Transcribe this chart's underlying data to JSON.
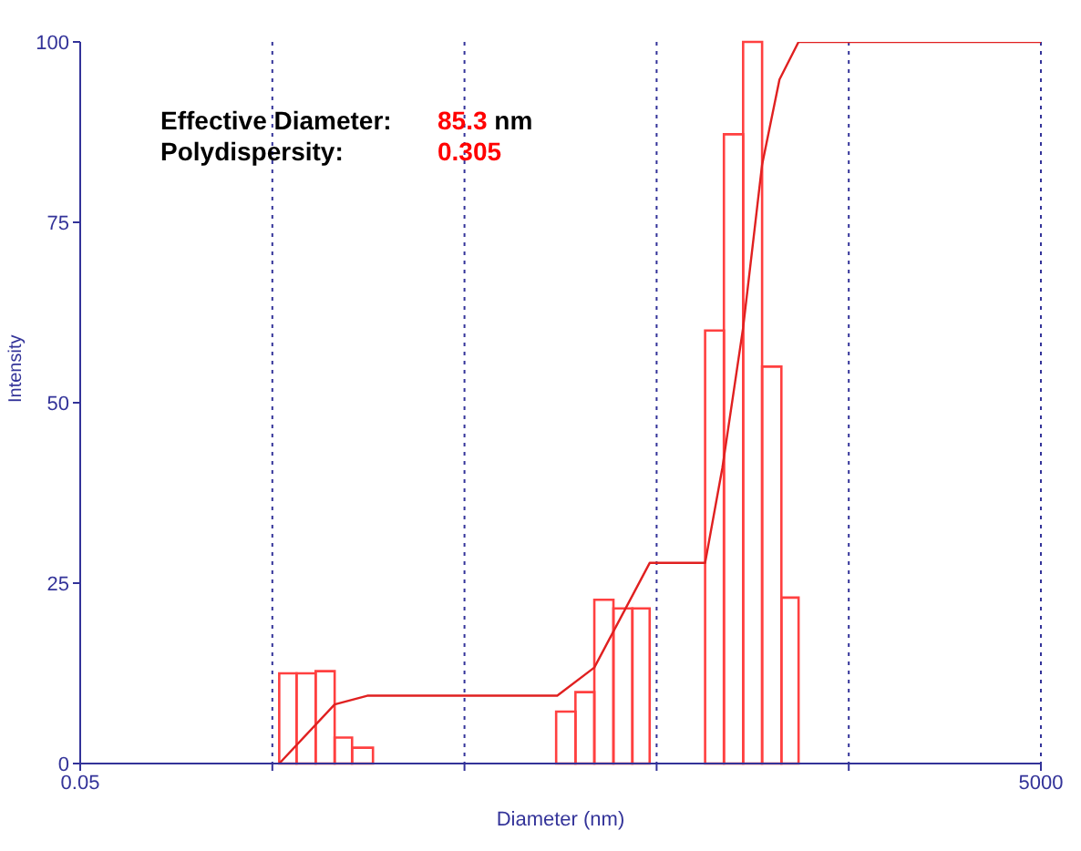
{
  "chart_data": {
    "type": "histogram",
    "xlabel": "Diameter (nm)",
    "ylabel": "Intensity",
    "log": "x",
    "grid": "x",
    "annotations": [
      "Effective Diameter: 85.3 nm",
      "Polydispersity: 0.305"
    ],
    "xlim": [
      0.05,
      5000
    ],
    "xticks": [
      0.05,
      {
        "value": 0.5,
        "label": null
      },
      {
        "value": 5,
        "label": null
      },
      {
        "value": 50,
        "label": null
      },
      {
        "value": 500,
        "label": null
      },
      5000
    ],
    "ylim": [
      0,
      100
    ],
    "yticks": [
      0,
      25,
      50,
      75,
      100
    ],
    "bins": [
      0.543,
      0.668,
      0.84,
      1.055,
      1.3,
      1.67,
      15.0,
      18.9,
      23.7,
      29.8,
      37.4,
      46.0,
      89.4,
      112,
      141,
      177,
      223,
      274
    ],
    "values": [
      12.5,
      12.5,
      12.8,
      3.6,
      2.2,
      0,
      7.2,
      9.9,
      22.7,
      21.5,
      21.5,
      0,
      60,
      87.2,
      100,
      55,
      23
    ],
    "color": "#ff4040",
    "series": [
      {
        "type": "line",
        "color": "#e02020",
        "x": [
          0.543,
          1.055,
          1.56,
          15.2,
          23.7,
          46,
          89.4,
          110,
          141,
          177,
          218,
          274,
          5000
        ],
        "values": [
          0,
          8.2,
          9.4,
          9.4,
          13.3,
          27.8,
          27.8,
          41,
          60.4,
          83,
          94.8,
          100,
          100
        ]
      }
    ]
  }
}
